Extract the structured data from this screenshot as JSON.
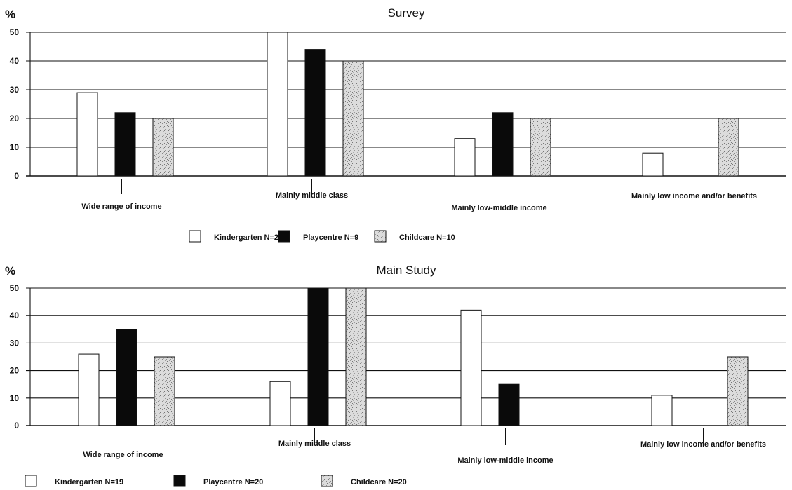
{
  "chart_data": [
    {
      "type": "bar",
      "title": "Survey",
      "ylabel": "%",
      "ylim": [
        0,
        50
      ],
      "yticks": [
        "0",
        "10",
        "20",
        "30",
        "40",
        "50"
      ],
      "grid": true,
      "legend_position": "bottom",
      "categories": [
        "Wide range of income",
        "Mainly middle class",
        "Mainly low-middle income",
        "Mainly low income and/or benefits"
      ],
      "series": [
        {
          "name": "Kindergarten N=24",
          "fill": "white",
          "values": [
            29,
            50,
            13,
            8
          ]
        },
        {
          "name": "Playcentre N=9",
          "fill": "black",
          "values": [
            22,
            44,
            22,
            0
          ]
        },
        {
          "name": "Childcare N=10",
          "fill": "stipple",
          "values": [
            20,
            40,
            20,
            20
          ]
        }
      ]
    },
    {
      "type": "bar",
      "title": "Main Study",
      "ylabel": "%",
      "ylim": [
        0,
        50
      ],
      "yticks": [
        "0",
        "10",
        "20",
        "30",
        "40",
        "50"
      ],
      "grid": true,
      "legend_position": "bottom",
      "categories": [
        "Wide range of income",
        "Mainly middle class",
        "Mainly low-middle income",
        "Mainly low income and/or benefits"
      ],
      "series": [
        {
          "name": "Kindergarten N=19",
          "fill": "white",
          "values": [
            26,
            16,
            42,
            11
          ]
        },
        {
          "name": "Playcentre N=20",
          "fill": "black",
          "values": [
            35,
            50,
            15,
            0
          ]
        },
        {
          "name": "Childcare N=20",
          "fill": "stipple",
          "values": [
            25,
            50,
            0,
            25
          ]
        }
      ]
    }
  ]
}
